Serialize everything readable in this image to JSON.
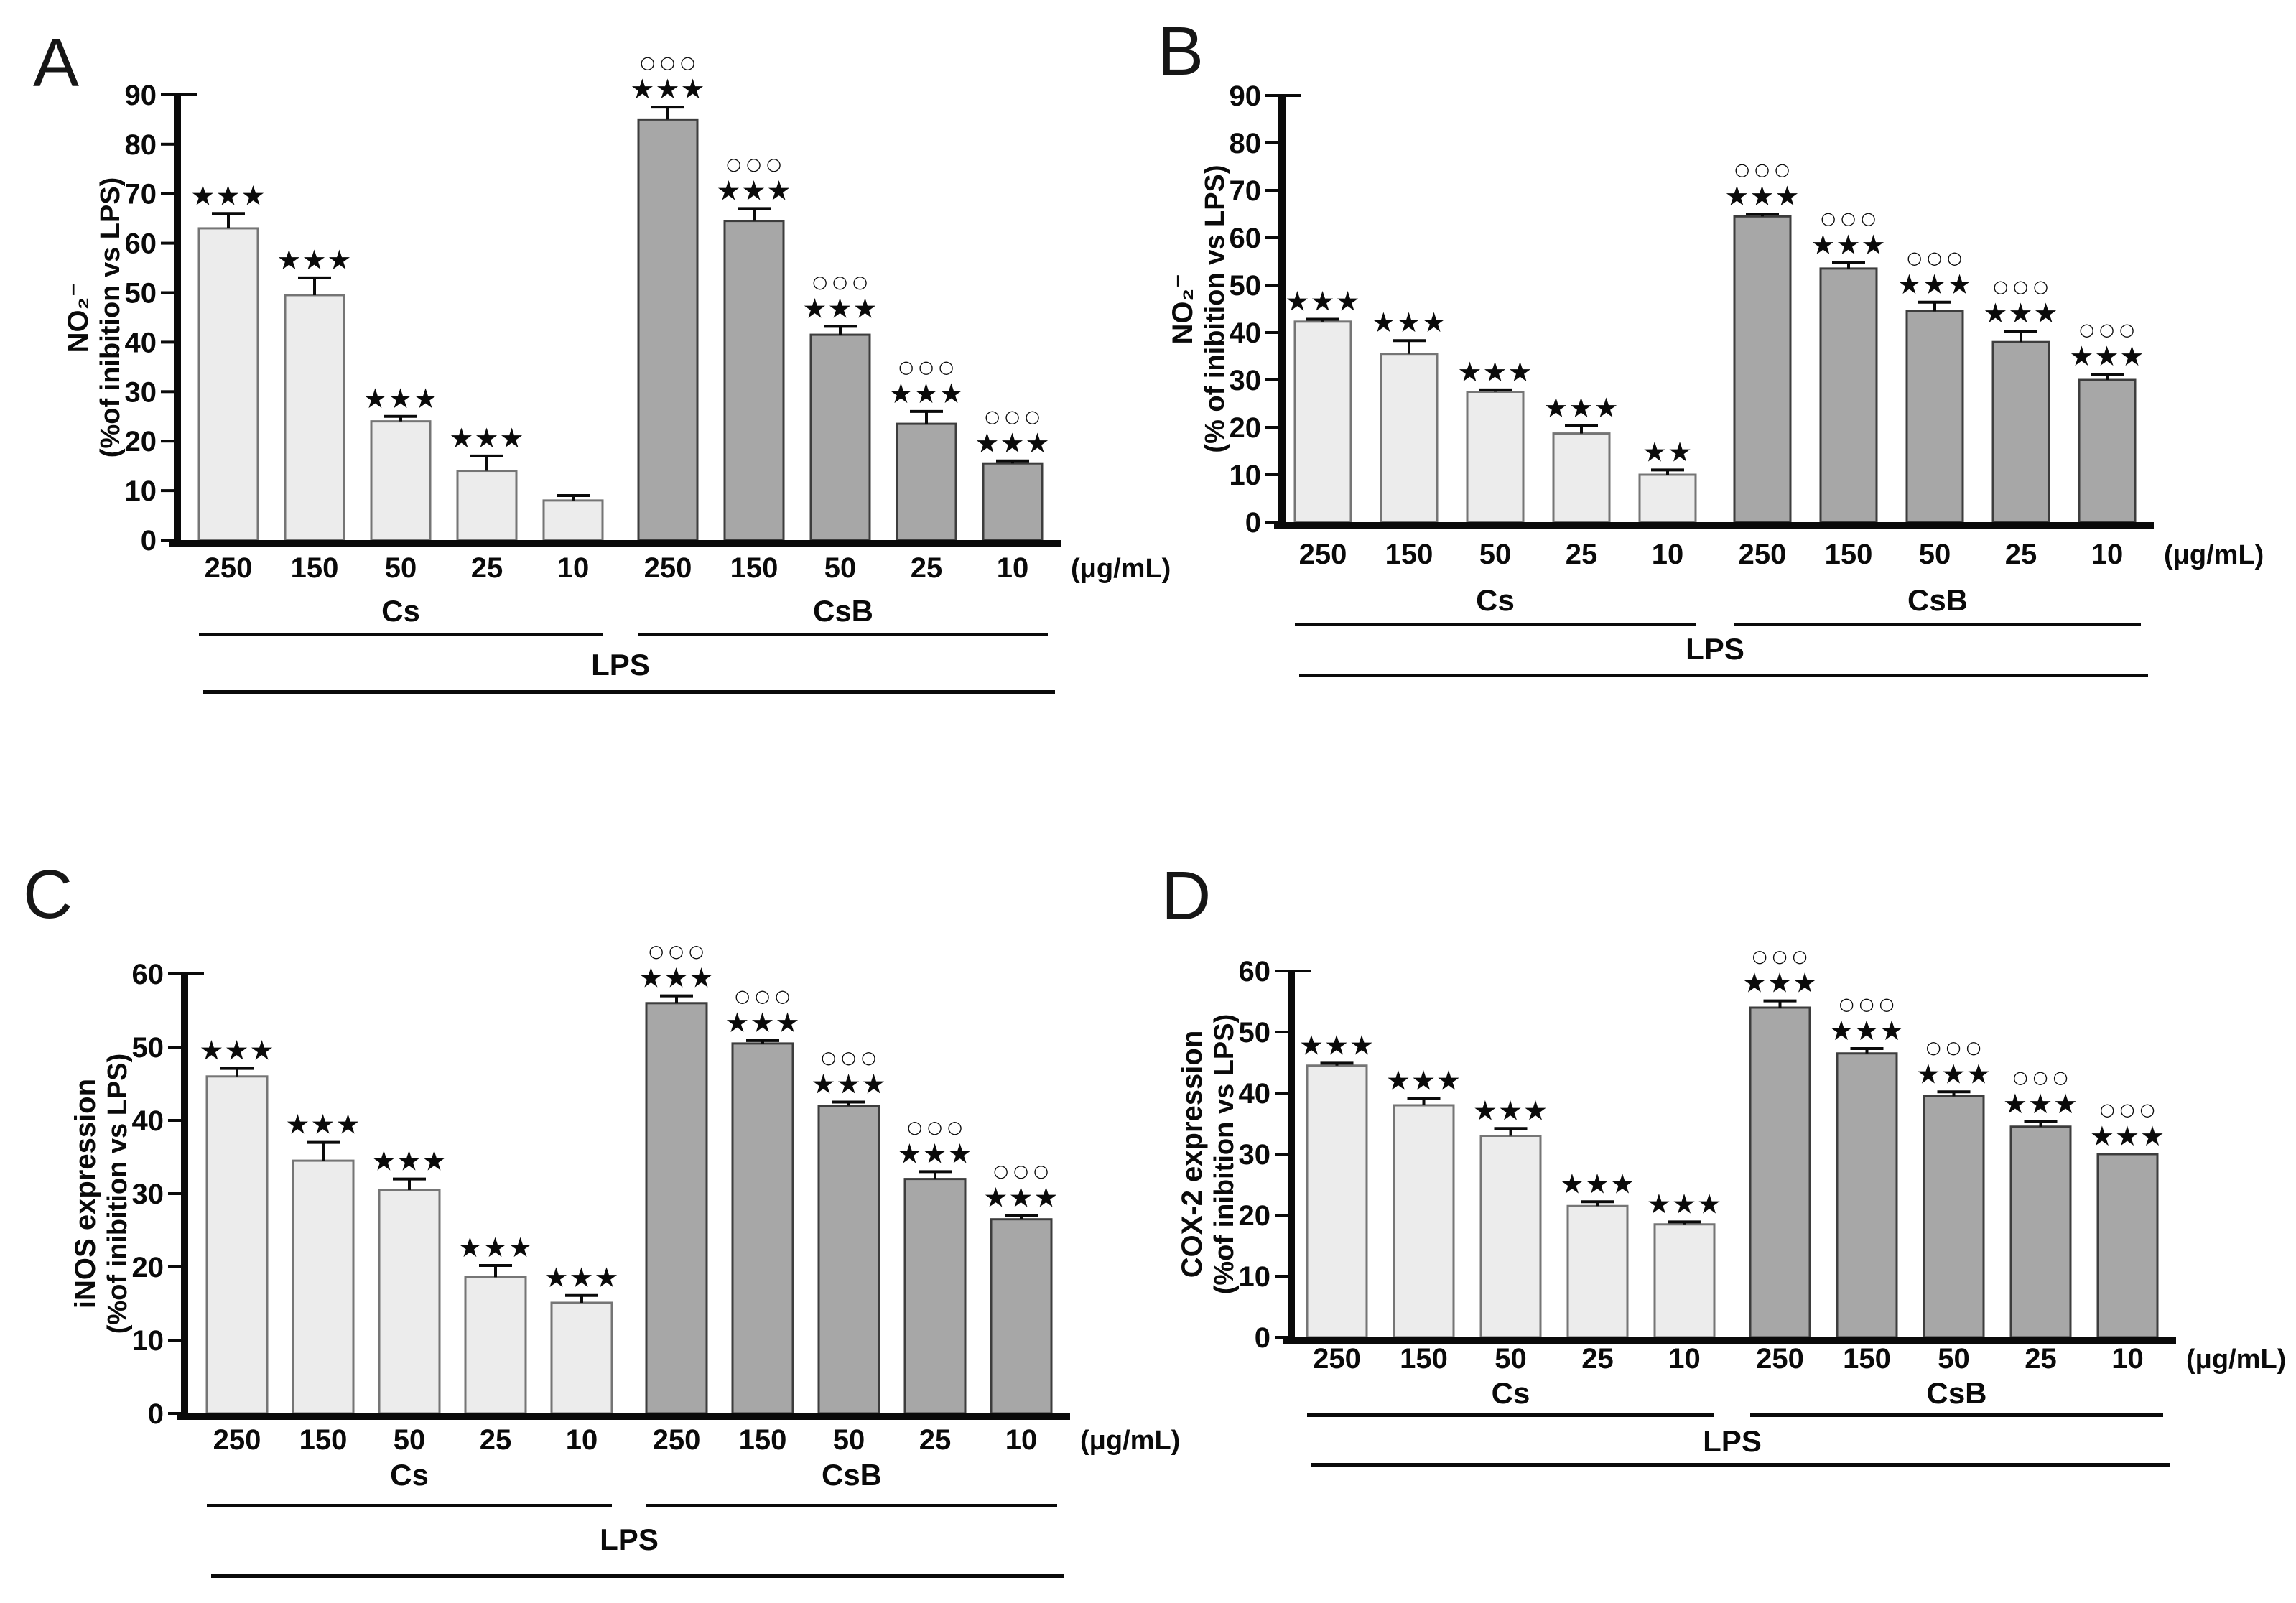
{
  "figure": {
    "style": {
      "bar_light_fill": "#ececec",
      "bar_light_stroke": "#757575",
      "bar_dark_fill": "#a7a7a7",
      "bar_dark_stroke": "#3d3d3d",
      "axis_color": "#0a0a0a",
      "text_color": "#0a0a0a"
    }
  },
  "chart_data": [
    {
      "type": "bar",
      "panel": "A",
      "ylabel": "NO₂⁻",
      "ylabel_sub": "(%of inibition vs LPS)",
      "xunit_label": "(μg/mL)",
      "ylim": [
        0,
        90
      ],
      "ytick_step": 10,
      "categories": [
        "250",
        "150",
        "50",
        "25",
        "10",
        "250",
        "150",
        "50",
        "25",
        "10"
      ],
      "group_span_labels": [
        "Cs",
        "CsB"
      ],
      "overall_span_label": "LPS",
      "series": [
        {
          "name": "Cs",
          "fill": "light",
          "values": [
            63,
            49.5,
            24,
            14,
            8
          ],
          "errors": [
            3,
            3.5,
            1,
            3,
            1
          ],
          "stars": [
            "***",
            "***",
            "***",
            "***",
            ""
          ],
          "circles": [
            "",
            "",
            "",
            "",
            ""
          ]
        },
        {
          "name": "CsB",
          "fill": "dark",
          "values": [
            85,
            64.5,
            41.5,
            23.5,
            15.5
          ],
          "errors": [
            2.5,
            2.5,
            1.7,
            2.5,
            0.5
          ],
          "stars": [
            "***",
            "***",
            "***",
            "***",
            "***"
          ],
          "circles": [
            "°°°",
            "°°°",
            "°°°",
            "°°°",
            "°°°"
          ]
        }
      ]
    },
    {
      "type": "bar",
      "panel": "B",
      "ylabel": "NO₂⁻",
      "ylabel_sub": "(% of inibition vs LPS)",
      "xunit_label": "(μg/mL)",
      "ylim": [
        0,
        90
      ],
      "ytick_step": 10,
      "categories": [
        "250",
        "150",
        "50",
        "25",
        "10",
        "250",
        "150",
        "50",
        "25",
        "10"
      ],
      "group_span_labels": [
        "Cs",
        "CsB"
      ],
      "overall_span_label": "LPS",
      "series": [
        {
          "name": "Cs",
          "fill": "light",
          "values": [
            42.3,
            35.5,
            27.5,
            18.7,
            10
          ],
          "errors": [
            0.5,
            2.8,
            0.4,
            1.6,
            1
          ],
          "stars": [
            "***",
            "***",
            "***",
            "***",
            "**"
          ],
          "circles": [
            "",
            "",
            "",
            "",
            ""
          ]
        },
        {
          "name": "CsB",
          "fill": "dark",
          "values": [
            64.5,
            53.5,
            44.5,
            38,
            30
          ],
          "errors": [
            0.5,
            1.2,
            1.9,
            2.3,
            1.2
          ],
          "stars": [
            "***",
            "***",
            "***",
            "***",
            "***"
          ],
          "circles": [
            "°°°",
            "°°°",
            "°°°",
            "°°°",
            "°°°"
          ]
        }
      ]
    },
    {
      "type": "bar",
      "panel": "C",
      "ylabel": "iNOS expression",
      "ylabel_sub": "(%of inibition vs LPS)",
      "xunit_label": "(μg/mL)",
      "ylim": [
        0,
        60
      ],
      "ytick_step": 10,
      "categories": [
        "250",
        "150",
        "50",
        "25",
        "10",
        "250",
        "150",
        "50",
        "25",
        "10"
      ],
      "group_span_labels": [
        "Cs",
        "CsB"
      ],
      "overall_span_label": "LPS",
      "series": [
        {
          "name": "Cs",
          "fill": "light",
          "values": [
            46,
            34.5,
            30.5,
            18.6,
            15.1
          ],
          "errors": [
            1.1,
            2.5,
            1.5,
            1.6,
            1
          ],
          "stars": [
            "***",
            "***",
            "***",
            "***",
            "***"
          ],
          "circles": [
            "",
            "",
            "",
            "",
            ""
          ]
        },
        {
          "name": "CsB",
          "fill": "dark",
          "values": [
            56,
            50.5,
            42,
            32,
            26.5
          ],
          "errors": [
            1,
            0.4,
            0.5,
            1,
            0.5
          ],
          "stars": [
            "***",
            "***",
            "***",
            "***",
            "***"
          ],
          "circles": [
            "°°°",
            "°°°",
            "°°°",
            "°°°",
            "°°°"
          ]
        }
      ]
    },
    {
      "type": "bar",
      "panel": "D",
      "ylabel": "COX-2 expression",
      "ylabel_sub": "(%of inibition vs LPS)",
      "xunit_label": "(μg/mL)",
      "ylim": [
        0,
        60
      ],
      "ytick_step": 10,
      "categories": [
        "250",
        "150",
        "50",
        "25",
        "10",
        "250",
        "150",
        "50",
        "25",
        "10"
      ],
      "group_span_labels": [
        "Cs",
        "CsB"
      ],
      "overall_span_label": "LPS",
      "series": [
        {
          "name": "Cs",
          "fill": "light",
          "values": [
            44.5,
            38,
            33,
            21.5,
            18.5
          ],
          "errors": [
            0.4,
            1.1,
            1.2,
            0.7,
            0.4
          ],
          "stars": [
            "***",
            "***",
            "***",
            "***",
            "***"
          ],
          "circles": [
            "",
            "",
            "",
            "",
            ""
          ]
        },
        {
          "name": "CsB",
          "fill": "dark",
          "values": [
            54,
            46.5,
            39.5,
            34.5,
            30
          ],
          "errors": [
            1.1,
            0.8,
            0.7,
            0.8,
            0
          ],
          "stars": [
            "***",
            "***",
            "***",
            "***",
            "***"
          ],
          "circles": [
            "°°°",
            "°°°",
            "°°°",
            "°°°",
            "°°°"
          ]
        }
      ]
    }
  ]
}
